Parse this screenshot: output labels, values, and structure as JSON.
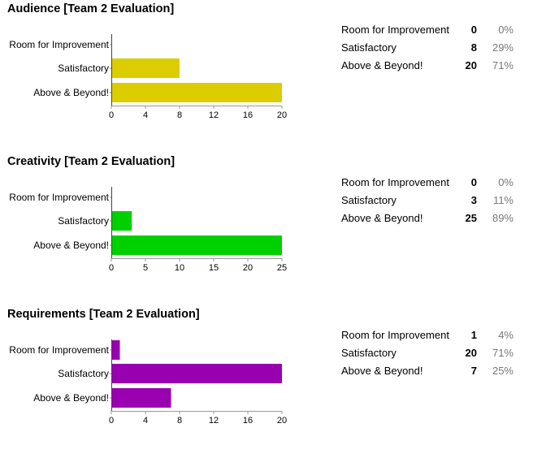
{
  "chart_data": [
    {
      "type": "bar",
      "orientation": "horizontal",
      "title": "Audience [Team 2 Evaluation]",
      "categories": [
        "Room for Improvement",
        "Satisfactory",
        "Above & Beyond!"
      ],
      "values": [
        0,
        8,
        20
      ],
      "percents": [
        "0%",
        "29%",
        "71%"
      ],
      "xticks": [
        0,
        4,
        8,
        12,
        16,
        20
      ],
      "xlim": [
        0,
        20
      ],
      "color": "#dccd00",
      "grid": false,
      "legend": "none"
    },
    {
      "type": "bar",
      "orientation": "horizontal",
      "title": "Creativity [Team 2 Evaluation]",
      "categories": [
        "Room for Improvement",
        "Satisfactory",
        "Above & Beyond!"
      ],
      "values": [
        0,
        3,
        25
      ],
      "percents": [
        "0%",
        "11%",
        "89%"
      ],
      "xticks": [
        0,
        5,
        10,
        15,
        20,
        25
      ],
      "xlim": [
        0,
        25
      ],
      "color": "#00d000",
      "grid": false,
      "legend": "none"
    },
    {
      "type": "bar",
      "orientation": "horizontal",
      "title": "Requirements [Team 2 Evaluation]",
      "categories": [
        "Room for Improvement",
        "Satisfactory",
        "Above & Beyond!"
      ],
      "values": [
        1,
        20,
        7
      ],
      "percents": [
        "4%",
        "71%",
        "25%"
      ],
      "xticks": [
        0,
        4,
        8,
        12,
        16,
        20
      ],
      "xlim": [
        0,
        20
      ],
      "color": "#9900b0",
      "grid": false,
      "legend": "none"
    }
  ]
}
